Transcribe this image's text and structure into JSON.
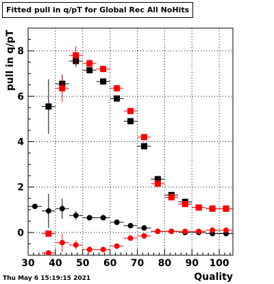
{
  "timestamp": "Thu May  6 15:19:15 2021",
  "chart_data": {
    "type": "scatter",
    "title": "Fitted pull in q/pT for Global Rec All NoHits",
    "xlabel": "Quality",
    "ylabel": "pull in q/pT",
    "xlim": [
      30,
      105
    ],
    "ylim": [
      -1,
      9
    ],
    "xticks": [
      30,
      40,
      50,
      60,
      70,
      80,
      90,
      100
    ],
    "yticks": [
      0,
      2,
      4,
      6,
      8
    ],
    "grid": true,
    "x_bin_halfwidth": 2.5,
    "series": [
      {
        "color": "#000000",
        "x": [
          37.5,
          42.5,
          47.5,
          52.5,
          57.5,
          62.5,
          67.5,
          72.5,
          77.5,
          82.5,
          87.5,
          92.5,
          97.5,
          102.5
        ],
        "y": [
          5.55,
          6.55,
          7.55,
          7.15,
          6.65,
          5.9,
          4.9,
          3.8,
          2.35,
          1.65,
          1.35,
          1.1,
          1.05,
          1.05
        ],
        "yerr": [
          1.2,
          0.4,
          0.25,
          0.15,
          0.1,
          0.1,
          0.1,
          0.1,
          0.1,
          0.1,
          0.1,
          0.1,
          0.1,
          0.1
        ]
      },
      {
        "color": "#ff0000",
        "x": [
          37.5,
          42.5,
          47.5,
          52.5,
          57.5,
          62.5,
          67.5,
          72.5,
          77.5,
          82.5,
          87.5,
          92.5,
          97.5,
          102.5
        ],
        "y": [
          -0.05,
          6.35,
          7.8,
          7.45,
          7.2,
          6.35,
          5.35,
          4.2,
          2.15,
          1.55,
          1.25,
          1.1,
          1.05,
          1.05
        ],
        "yerr": [
          0,
          0.6,
          0.4,
          0.2,
          0.15,
          0.1,
          0.1,
          0.1,
          0.1,
          0.1,
          0.1,
          0.1,
          0.1,
          0.1
        ]
      },
      {
        "color": "#000000",
        "marker": "circle",
        "x": [
          32.5,
          37.5,
          42.5,
          47.5,
          52.5,
          57.5,
          62.5,
          67.5,
          72.5,
          77.5,
          82.5,
          87.5,
          92.5,
          97.5,
          102.5
        ],
        "y": [
          1.15,
          0.95,
          1.05,
          0.75,
          0.65,
          0.65,
          0.45,
          0.3,
          0.2,
          0.05,
          0.05,
          0.0,
          0.0,
          -0.05,
          -0.05
        ],
        "yerr": [
          0.1,
          0.75,
          0.45,
          0.2,
          0.1,
          0.1,
          0.1,
          0.1,
          0.1,
          0.1,
          0.1,
          0.1,
          0.1,
          0.1,
          0.1
        ]
      },
      {
        "color": "#ff0000",
        "marker": "circle",
        "x": [
          37.5,
          42.5,
          47.5,
          52.5,
          57.5,
          62.5,
          67.5,
          72.5,
          77.5,
          82.5,
          87.5,
          92.5,
          97.5,
          102.5
        ],
        "y": [
          -0.9,
          -0.45,
          -0.55,
          -0.75,
          -0.75,
          -0.6,
          -0.25,
          -0.15,
          0.05,
          0.05,
          0.05,
          0.05,
          0.1,
          0.1
        ],
        "yerr": [
          0.1,
          0.4,
          0.2,
          0.15,
          0.1,
          0.1,
          0.1,
          0.1,
          0.1,
          0.1,
          0.1,
          0.1,
          0.1,
          0.1
        ]
      }
    ]
  }
}
